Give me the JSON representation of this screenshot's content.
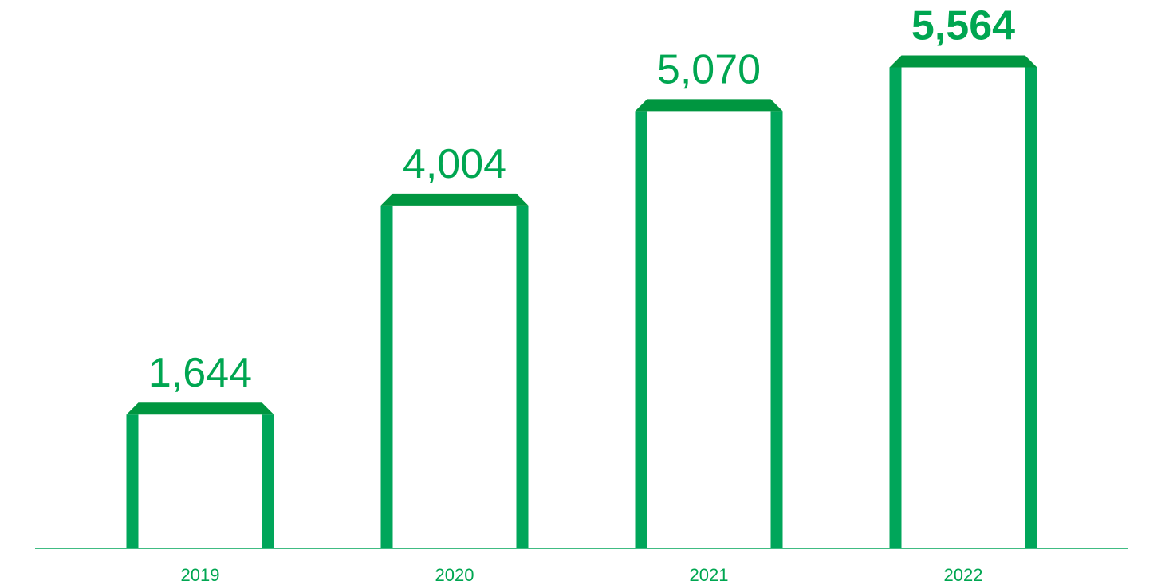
{
  "chart_data": {
    "type": "bar",
    "categories": [
      "2019",
      "2020",
      "2021",
      "2022"
    ],
    "values": [
      1644,
      4004,
      5070,
      5564
    ],
    "value_labels": [
      "1,644",
      "4,004",
      "5,070",
      "5,564"
    ],
    "ylim": [
      0,
      6000
    ],
    "grid": false,
    "legend": "none",
    "title": "",
    "xlabel": "",
    "ylabel": ""
  },
  "colors": {
    "bar": "#00a65a",
    "bar_cap": "#009640",
    "axis": "#00a65a",
    "label": "#00a651"
  }
}
